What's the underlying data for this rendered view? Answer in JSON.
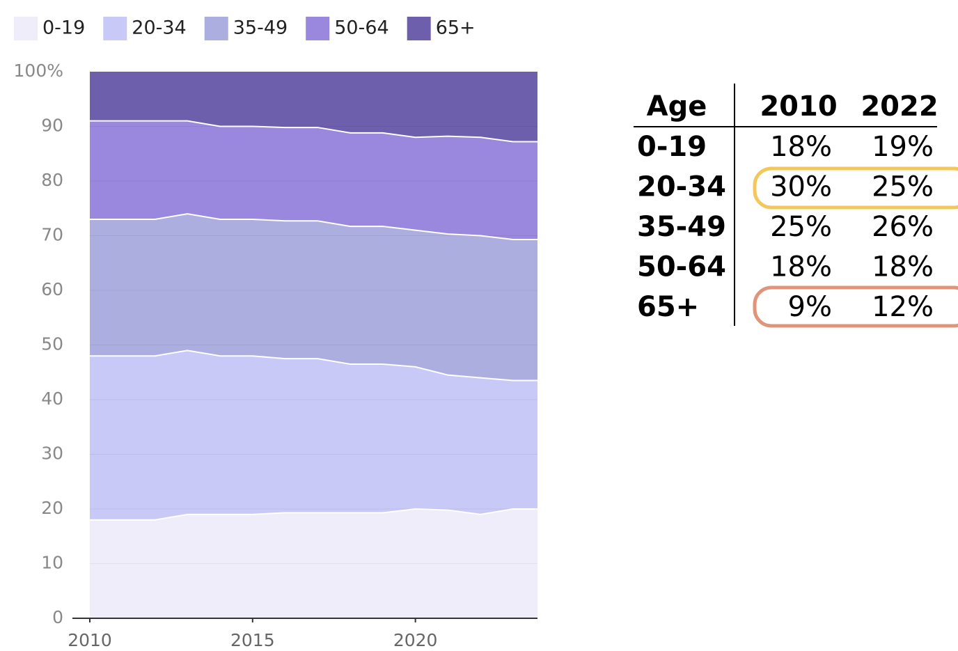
{
  "chart_data": {
    "type": "stacked_area",
    "x": [
      2010,
      2011,
      2012,
      2013,
      2014,
      2015,
      2016,
      2017,
      2018,
      2019,
      2020,
      2021,
      2022,
      2023,
      2023.75
    ],
    "series": [
      {
        "name": "0-19",
        "color": "#efedfa",
        "values": [
          18,
          18,
          18,
          19,
          19,
          19,
          19.3,
          19.3,
          19.3,
          19.3,
          20,
          19.8,
          19,
          20,
          20
        ]
      },
      {
        "name": "20-34",
        "color": "#c9c9f7",
        "values": [
          30,
          30,
          30,
          30,
          29,
          29,
          28.2,
          28.2,
          27.2,
          27.2,
          26,
          24.7,
          25,
          23.5,
          23.5
        ]
      },
      {
        "name": "35-49",
        "color": "#adaee0",
        "values": [
          25,
          25,
          25,
          25,
          25,
          25,
          25.2,
          25.2,
          25.2,
          25.2,
          25,
          25.8,
          26,
          25.8,
          25.8
        ]
      },
      {
        "name": "50-64",
        "color": "#9988dd",
        "values": [
          18,
          18,
          18,
          17,
          17,
          17,
          17.1,
          17.1,
          17.1,
          17.1,
          17,
          17.9,
          18,
          17.9,
          17.9
        ]
      },
      {
        "name": "65+",
        "color": "#6d5fab",
        "values": [
          9,
          9,
          9,
          9,
          10,
          10,
          10.2,
          10.2,
          11.2,
          11.2,
          12,
          11.8,
          12,
          12.8,
          12.8
        ]
      }
    ],
    "xlim": [
      2010,
      2023.75
    ],
    "xticks": [
      2010,
      2015,
      2020
    ],
    "ylim": [
      0,
      100
    ],
    "yticks": [
      0,
      10,
      20,
      30,
      40,
      50,
      60,
      70,
      80,
      90,
      {
        "value": 100,
        "label": "100%"
      }
    ],
    "grid": true,
    "legend": "top"
  },
  "table": {
    "header": [
      "Age",
      "2010",
      "2022"
    ],
    "rows": [
      [
        "0-19",
        "18%",
        "19%"
      ],
      [
        "20-34",
        "30%",
        "25%"
      ],
      [
        "35-49",
        "25%",
        "26%"
      ],
      [
        "50-64",
        "18%",
        "18%"
      ],
      [
        "65+",
        "9%",
        "12%"
      ]
    ]
  }
}
